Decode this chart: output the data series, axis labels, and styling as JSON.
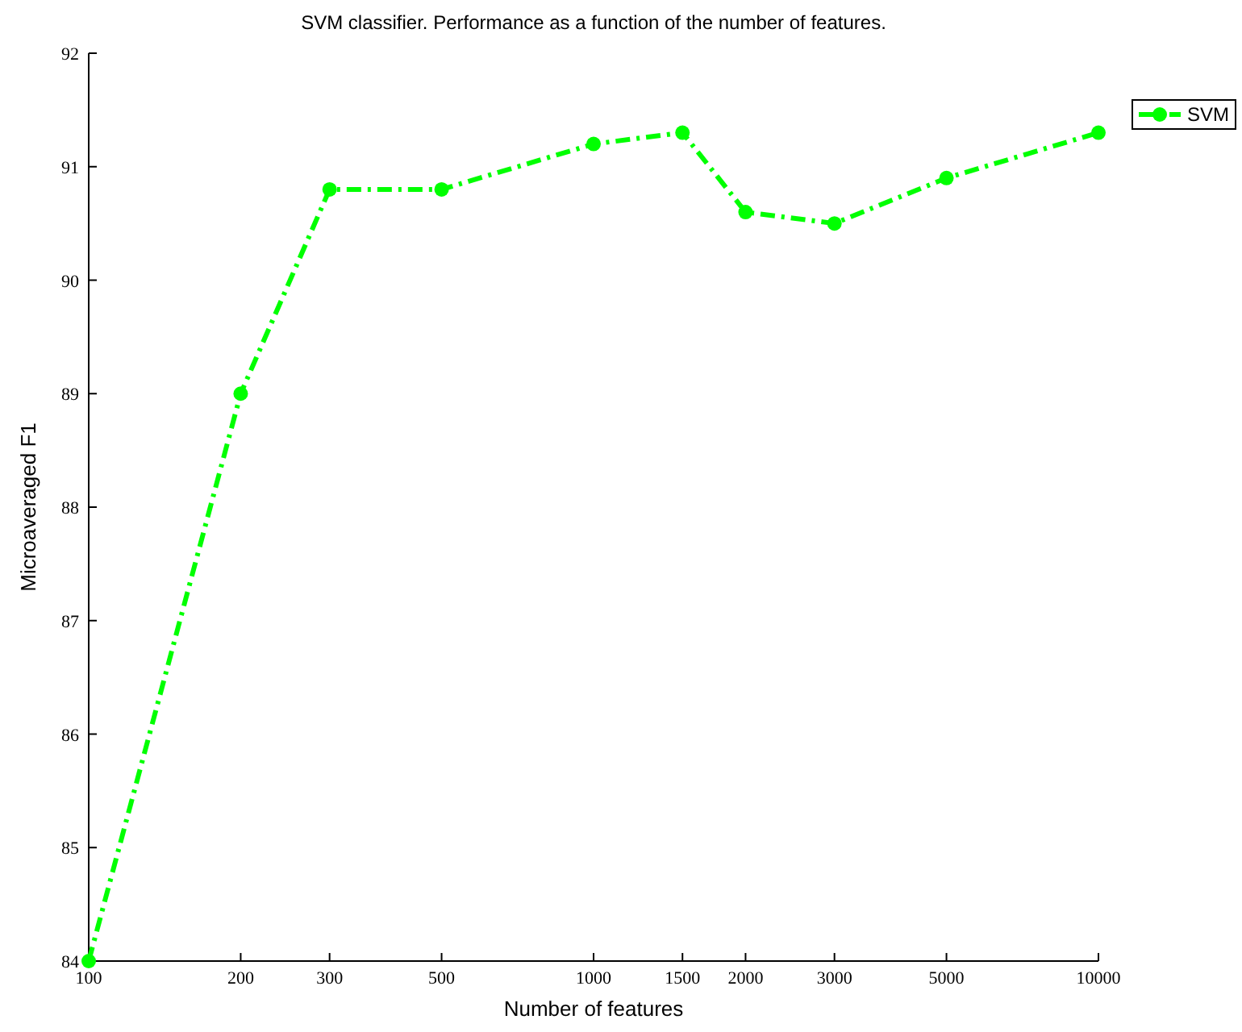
{
  "chart_data": {
    "type": "line",
    "title": "SVM classifier. Performance as a function of the number of features.",
    "xlabel": "Number of features",
    "ylabel": "Microaveraged F1",
    "x": [
      100,
      200,
      300,
      500,
      1000,
      1500,
      2000,
      3000,
      5000,
      10000
    ],
    "series": [
      {
        "name": "SVM",
        "color": "#00ff00",
        "values": [
          84,
          89,
          90.8,
          90.8,
          91.2,
          91.3,
          90.6,
          90.5,
          90.9,
          91.3
        ]
      }
    ],
    "log": "x",
    "xlim": [
      100,
      10000
    ],
    "xticks": [
      100,
      200,
      300,
      500,
      1000,
      1500,
      2000,
      3000,
      5000,
      10000
    ],
    "ylim": [
      84,
      92
    ],
    "yticks": [
      84,
      85,
      86,
      87,
      88,
      89,
      90,
      91,
      92
    ],
    "marker": "circle",
    "line_style": "dashed",
    "legend": "top right",
    "grid": false
  }
}
